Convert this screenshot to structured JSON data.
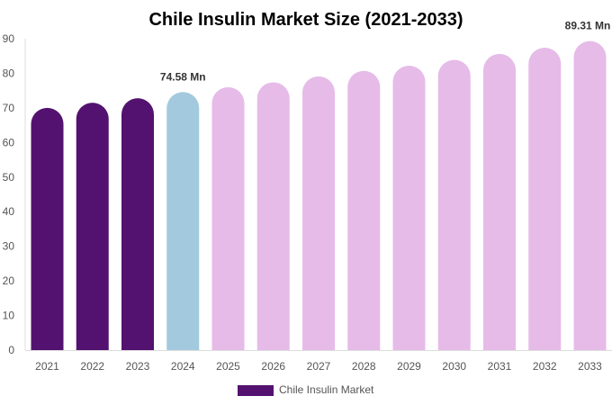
{
  "chart_data": {
    "type": "bar",
    "title": "Chile Insulin Market Size (2021-2033)",
    "xlabel": "",
    "ylabel": "",
    "ylim": [
      0,
      90
    ],
    "yticks": [
      0,
      10,
      20,
      30,
      40,
      50,
      60,
      70,
      80,
      90
    ],
    "grid": false,
    "legend_position": "bottom",
    "categories": [
      "2021",
      "2022",
      "2023",
      "2024",
      "2025",
      "2026",
      "2027",
      "2028",
      "2029",
      "2030",
      "2031",
      "2032",
      "2033"
    ],
    "series": [
      {
        "name": "Chile Insulin Market",
        "values": [
          70.0,
          71.5,
          72.8,
          74.58,
          76.0,
          77.4,
          79.1,
          80.7,
          82.2,
          83.9,
          85.6,
          87.4,
          89.31
        ],
        "colors": [
          "#53126f",
          "#53126f",
          "#53126f",
          "#a3c9de",
          "#e6bbe8",
          "#e6bbe8",
          "#e6bbe8",
          "#e6bbe8",
          "#e6bbe8",
          "#e6bbe8",
          "#e6bbe8",
          "#e6bbe8",
          "#e6bbe8"
        ]
      }
    ],
    "data_labels": [
      {
        "category": "2024",
        "text": "74.58 Mn"
      },
      {
        "category": "2033",
        "text": "89.31 Mn"
      }
    ],
    "legend_color": "#53126f"
  }
}
